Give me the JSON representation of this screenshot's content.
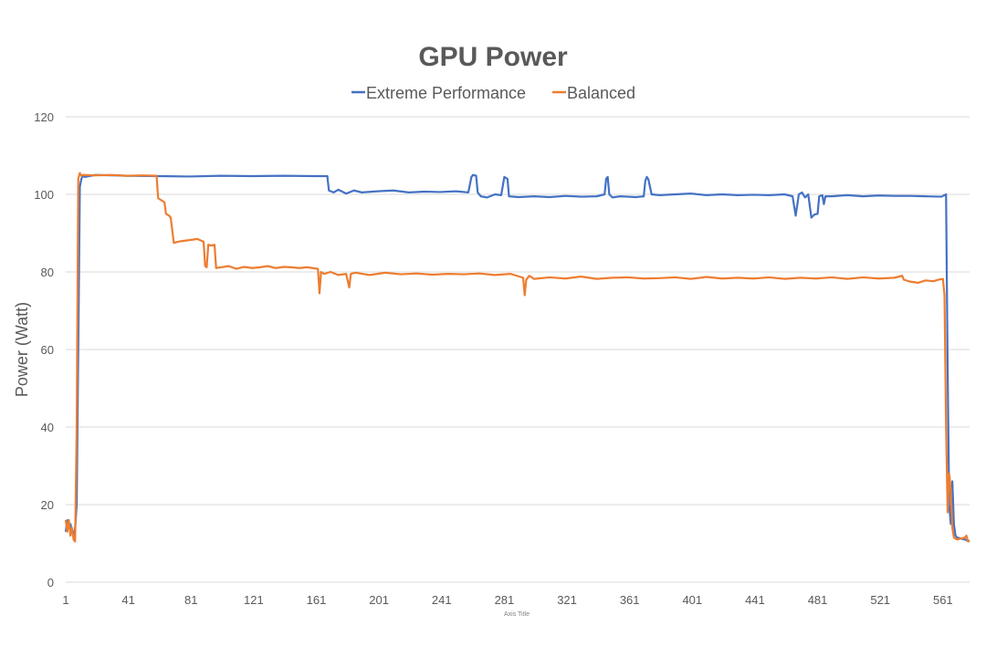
{
  "chart_data": {
    "type": "line",
    "title": "GPU Power",
    "xlabel": "Axis Title",
    "ylabel": "Power (Watt)",
    "xlim": [
      1,
      578
    ],
    "ylim": [
      0,
      120
    ],
    "y_ticks": [
      0,
      20,
      40,
      60,
      80,
      100,
      120
    ],
    "x_ticks": [
      1,
      41,
      81,
      121,
      161,
      201,
      241,
      281,
      321,
      361,
      401,
      441,
      481,
      521,
      561
    ],
    "grid": true,
    "legend_position": "top",
    "series": [
      {
        "name": "Extreme Performance",
        "color": "#4472c4",
        "points": [
          [
            1,
            13
          ],
          [
            2,
            16
          ],
          [
            3,
            14
          ],
          [
            4,
            15
          ],
          [
            5,
            13
          ],
          [
            6,
            12
          ],
          [
            7,
            14
          ],
          [
            8,
            20
          ],
          [
            9,
            60
          ],
          [
            10,
            102
          ],
          [
            11,
            104
          ],
          [
            12,
            105
          ],
          [
            13,
            104.5
          ],
          [
            20,
            105
          ],
          [
            40,
            104.8
          ],
          [
            60,
            104.7
          ],
          [
            80,
            104.6
          ],
          [
            100,
            104.8
          ],
          [
            120,
            104.7
          ],
          [
            140,
            104.8
          ],
          [
            160,
            104.7
          ],
          [
            168,
            104.7
          ],
          [
            169,
            101
          ],
          [
            172,
            100.5
          ],
          [
            175,
            101.2
          ],
          [
            180,
            100.2
          ],
          [
            185,
            101
          ],
          [
            190,
            100.5
          ],
          [
            200,
            100.8
          ],
          [
            210,
            101
          ],
          [
            220,
            100.5
          ],
          [
            230,
            100.7
          ],
          [
            240,
            100.6
          ],
          [
            250,
            100.8
          ],
          [
            258,
            100.5
          ],
          [
            260,
            104.5
          ],
          [
            261,
            105
          ],
          [
            263,
            104.8
          ],
          [
            264,
            100.5
          ],
          [
            266,
            99.5
          ],
          [
            270,
            99.2
          ],
          [
            275,
            100
          ],
          [
            279,
            99.8
          ],
          [
            281,
            104.5
          ],
          [
            283,
            104
          ],
          [
            284,
            99.5
          ],
          [
            290,
            99.3
          ],
          [
            300,
            99.5
          ],
          [
            310,
            99.3
          ],
          [
            320,
            99.6
          ],
          [
            330,
            99.4
          ],
          [
            340,
            99.5
          ],
          [
            345,
            100
          ],
          [
            346,
            104
          ],
          [
            347,
            104.5
          ],
          [
            348,
            100
          ],
          [
            350,
            99.2
          ],
          [
            355,
            99.5
          ],
          [
            365,
            99.3
          ],
          [
            370,
            99.5
          ],
          [
            371,
            103.5
          ],
          [
            372,
            104.5
          ],
          [
            373,
            103.8
          ],
          [
            375,
            100
          ],
          [
            380,
            99.8
          ],
          [
            390,
            100
          ],
          [
            400,
            100.2
          ],
          [
            410,
            99.8
          ],
          [
            420,
            100
          ],
          [
            430,
            99.8
          ],
          [
            440,
            99.9
          ],
          [
            450,
            99.8
          ],
          [
            460,
            100
          ],
          [
            465,
            99.5
          ],
          [
            467,
            94.5
          ],
          [
            469,
            100
          ],
          [
            471,
            100.5
          ],
          [
            473,
            99.2
          ],
          [
            475,
            100
          ],
          [
            477,
            94
          ],
          [
            479,
            94.8
          ],
          [
            481,
            95
          ],
          [
            482,
            99.5
          ],
          [
            484,
            99.8
          ],
          [
            485,
            97.5
          ],
          [
            486,
            99.5
          ],
          [
            490,
            99.5
          ],
          [
            500,
            99.8
          ],
          [
            510,
            99.5
          ],
          [
            520,
            99.7
          ],
          [
            530,
            99.6
          ],
          [
            540,
            99.6
          ],
          [
            550,
            99.5
          ],
          [
            560,
            99.4
          ],
          [
            563,
            100
          ],
          [
            564,
            55
          ],
          [
            565,
            20
          ],
          [
            566,
            15
          ],
          [
            567,
            26
          ],
          [
            568,
            15
          ],
          [
            569,
            12
          ],
          [
            570,
            11.5
          ],
          [
            575,
            11
          ],
          [
            578,
            10.5
          ]
        ]
      },
      {
        "name": "Balanced",
        "color": "#ed7d31",
        "points": [
          [
            1,
            16
          ],
          [
            2,
            13
          ],
          [
            3,
            16
          ],
          [
            4,
            12
          ],
          [
            5,
            14
          ],
          [
            6,
            11
          ],
          [
            7,
            10.5
          ],
          [
            8,
            40
          ],
          [
            9,
            104
          ],
          [
            10,
            105.5
          ],
          [
            11,
            104.8
          ],
          [
            12,
            105
          ],
          [
            20,
            104.9
          ],
          [
            30,
            105
          ],
          [
            40,
            104.8
          ],
          [
            50,
            104.9
          ],
          [
            59,
            104.8
          ],
          [
            60,
            99
          ],
          [
            62,
            98.5
          ],
          [
            64,
            98
          ],
          [
            65,
            95
          ],
          [
            67,
            94.5
          ],
          [
            68,
            94
          ],
          [
            70,
            87.5
          ],
          [
            73,
            87.8
          ],
          [
            76,
            88
          ],
          [
            80,
            88.2
          ],
          [
            85,
            88.5
          ],
          [
            89,
            87.8
          ],
          [
            90,
            81.5
          ],
          [
            91,
            81.2
          ],
          [
            92,
            87
          ],
          [
            94,
            86.8
          ],
          [
            96,
            87
          ],
          [
            97,
            81
          ],
          [
            100,
            81.2
          ],
          [
            105,
            81.5
          ],
          [
            110,
            80.8
          ],
          [
            115,
            81.3
          ],
          [
            120,
            81
          ],
          [
            125,
            81.2
          ],
          [
            130,
            81.5
          ],
          [
            135,
            81
          ],
          [
            140,
            81.3
          ],
          [
            145,
            81.2
          ],
          [
            150,
            81
          ],
          [
            155,
            81.2
          ],
          [
            162,
            80.8
          ],
          [
            163,
            74.5
          ],
          [
            164,
            80
          ],
          [
            166,
            79.5
          ],
          [
            170,
            80
          ],
          [
            175,
            79.2
          ],
          [
            180,
            79.5
          ],
          [
            182,
            76
          ],
          [
            183,
            79.5
          ],
          [
            186,
            79.8
          ],
          [
            195,
            79.2
          ],
          [
            205,
            79.8
          ],
          [
            215,
            79.4
          ],
          [
            225,
            79.6
          ],
          [
            235,
            79.3
          ],
          [
            245,
            79.5
          ],
          [
            255,
            79.4
          ],
          [
            265,
            79.6
          ],
          [
            275,
            79.2
          ],
          [
            285,
            79.5
          ],
          [
            293,
            78.5
          ],
          [
            294,
            74
          ],
          [
            295,
            78
          ],
          [
            297,
            79
          ],
          [
            300,
            78.2
          ],
          [
            310,
            78.6
          ],
          [
            320,
            78.3
          ],
          [
            330,
            78.8
          ],
          [
            340,
            78.2
          ],
          [
            350,
            78.5
          ],
          [
            360,
            78.6
          ],
          [
            370,
            78.3
          ],
          [
            380,
            78.4
          ],
          [
            390,
            78.6
          ],
          [
            400,
            78.2
          ],
          [
            410,
            78.7
          ],
          [
            420,
            78.3
          ],
          [
            430,
            78.5
          ],
          [
            440,
            78.3
          ],
          [
            450,
            78.6
          ],
          [
            460,
            78.2
          ],
          [
            470,
            78.5
          ],
          [
            480,
            78.3
          ],
          [
            490,
            78.6
          ],
          [
            500,
            78.2
          ],
          [
            510,
            78.6
          ],
          [
            520,
            78.3
          ],
          [
            530,
            78.5
          ],
          [
            535,
            79
          ],
          [
            536,
            78
          ],
          [
            540,
            77.5
          ],
          [
            545,
            77.2
          ],
          [
            550,
            77.8
          ],
          [
            555,
            77.6
          ],
          [
            558,
            78
          ],
          [
            561,
            78.2
          ],
          [
            562,
            74
          ],
          [
            563,
            40
          ],
          [
            564,
            18
          ],
          [
            565,
            28
          ],
          [
            566,
            24
          ],
          [
            567,
            14
          ],
          [
            568,
            11.5
          ],
          [
            570,
            11
          ],
          [
            575,
            11.5
          ],
          [
            576,
            12
          ],
          [
            577,
            10.5
          ],
          [
            578,
            10.8
          ]
        ]
      }
    ]
  }
}
